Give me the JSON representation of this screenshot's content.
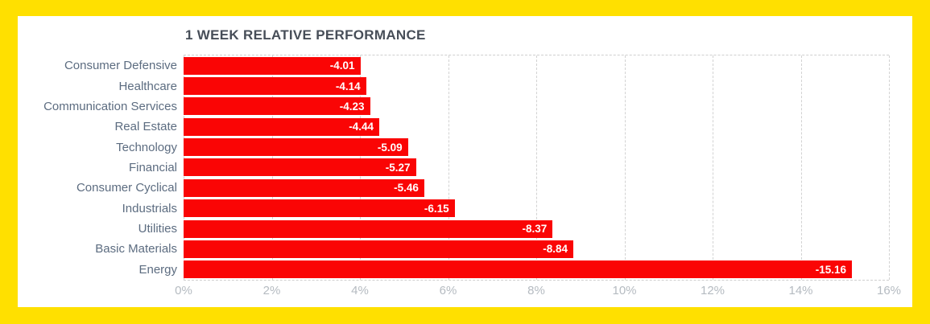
{
  "page": {
    "border_color": "#FFE000",
    "background_color": "#FFFFFF"
  },
  "chart_data": {
    "type": "bar",
    "orientation": "horizontal",
    "title": "1 WEEK RELATIVE PERFORMANCE",
    "categories": [
      "Consumer Defensive",
      "Healthcare",
      "Communication Services",
      "Real Estate",
      "Technology",
      "Financial",
      "Consumer Cyclical",
      "Industrials",
      "Utilities",
      "Basic Materials",
      "Energy"
    ],
    "values": [
      -4.01,
      -4.14,
      -4.23,
      -4.44,
      -5.09,
      -5.27,
      -5.46,
      -6.15,
      -8.37,
      -8.84,
      -15.16
    ],
    "value_labels": [
      "-4.01",
      "-4.14",
      "-4.23",
      "-4.44",
      "-5.09",
      "-5.27",
      "-5.46",
      "-6.15",
      "-8.37",
      "-8.84",
      "-15.16"
    ],
    "x_ticks": [
      "0%",
      "2%",
      "4%",
      "6%",
      "8%",
      "10%",
      "12%",
      "14%",
      "16%"
    ],
    "xlim": [
      0,
      16
    ],
    "xlabel": "",
    "ylabel": "",
    "legend": "none",
    "grid": "vertical dashed lines at each 2% tick, dashed top and bottom plot border",
    "bars_plotted_by": "absolute value of each (negative) performance number",
    "colors": {
      "bar": "#FA0505",
      "bar_value_label": "#FFFFFF",
      "category_label": "#5C6C80",
      "title": "#474E58",
      "tick_label": "#B5BBC1",
      "gridline": "#D2D2D2"
    }
  }
}
